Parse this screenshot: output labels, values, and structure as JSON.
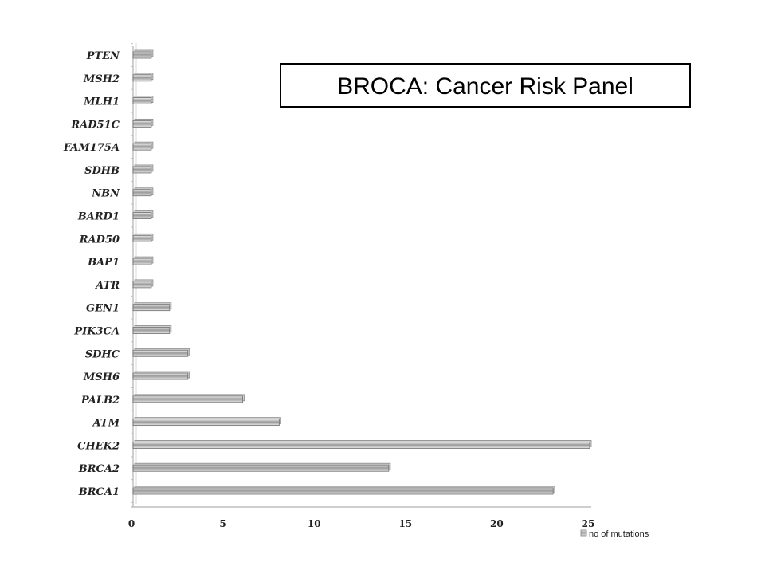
{
  "chart_data": {
    "type": "bar",
    "orientation": "horizontal",
    "title": "BROCA: Cancer Risk Panel",
    "categories": [
      "BRCA1",
      "BRCA2",
      "CHEK2",
      "ATM",
      "PALB2",
      "MSH6",
      "SDHC",
      "PIK3CA",
      "GEN1",
      "ATR",
      "BAP1",
      "RAD50",
      "BARD1",
      "NBN",
      "SDHB",
      "FAM175A",
      "RAD51C",
      "MLH1",
      "MSH2",
      "PTEN"
    ],
    "series": [
      {
        "name": "no of mutations",
        "values": [
          23,
          14,
          25,
          8,
          6,
          3,
          3,
          2,
          2,
          1,
          1,
          1,
          1,
          1,
          1,
          1,
          1,
          1,
          1,
          1
        ]
      }
    ],
    "xlim": [
      0,
      25
    ],
    "xticks": [
      0,
      5,
      10,
      15,
      20,
      25
    ],
    "grid": false,
    "legend_position": "bottom-right",
    "colors": {
      "bar_light": "#d9d9d9",
      "bar_dark": "#7f7f7f",
      "axis": "#bfbfbf"
    }
  }
}
